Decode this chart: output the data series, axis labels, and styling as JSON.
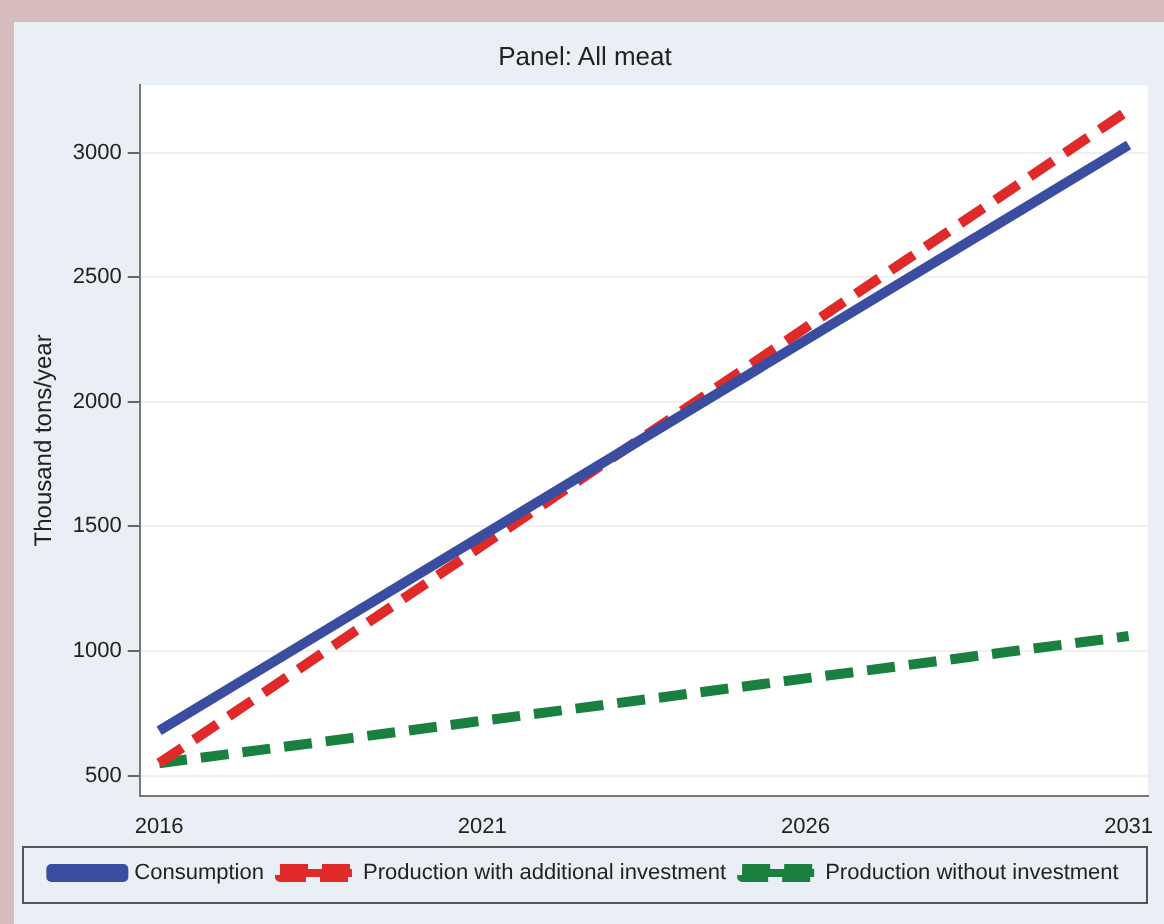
{
  "chart_data": {
    "type": "line",
    "title": "Panel: All meat",
    "ylabel": "Thousand tons/year",
    "x": [
      2016,
      2031
    ],
    "series": [
      {
        "name": "Consumption",
        "color": "#3a4da0",
        "values": [
          680,
          3030
        ],
        "line_style": "solid"
      },
      {
        "name": "Production with additional investment",
        "color": "#e02a2a",
        "values": [
          550,
          3170
        ],
        "line_style": "dashed"
      },
      {
        "name": "Production without investment",
        "color": "#1a8040",
        "values": [
          550,
          1060
        ],
        "line_style": "dashed"
      }
    ],
    "xlim": [
      2015.7,
      2031.3
    ],
    "xticks": [
      2016,
      2021,
      2026,
      2031
    ],
    "ylim": [
      420,
      3270
    ],
    "yticks": [
      500,
      1000,
      1500,
      2000,
      2500,
      3000
    ],
    "grid": "y",
    "legend": "bottom",
    "marker": "none"
  }
}
